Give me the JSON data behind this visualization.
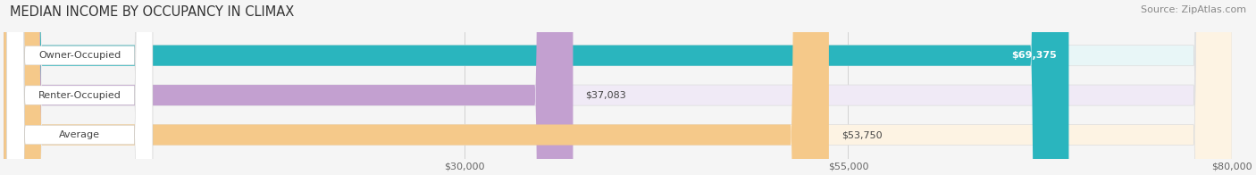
{
  "title": "MEDIAN INCOME BY OCCUPANCY IN CLIMAX",
  "source": "Source: ZipAtlas.com",
  "categories": [
    "Owner-Occupied",
    "Renter-Occupied",
    "Average"
  ],
  "values": [
    69375,
    37083,
    53750
  ],
  "labels": [
    "$69,375",
    "$37,083",
    "$53,750"
  ],
  "bar_colors": [
    "#2ab5be",
    "#c3a0d0",
    "#f5c98a"
  ],
  "bar_bg_colors": [
    "#e8f6f7",
    "#f0eaf6",
    "#fdf3e3"
  ],
  "label_text_colors": [
    "#333333",
    "#333333",
    "#333333"
  ],
  "value_label_colors": [
    "#ffffff",
    "#555555",
    "#555555"
  ],
  "xlim": [
    0,
    80000
  ],
  "xticks": [
    30000,
    55000,
    80000
  ],
  "xtick_labels": [
    "$30,000",
    "$55,000",
    "$80,000"
  ],
  "title_fontsize": 10.5,
  "source_fontsize": 8,
  "label_fontsize": 8,
  "bar_label_fontsize": 8,
  "background_color": "#f5f5f5",
  "bar_height": 0.52,
  "bar_gap": 0.18
}
